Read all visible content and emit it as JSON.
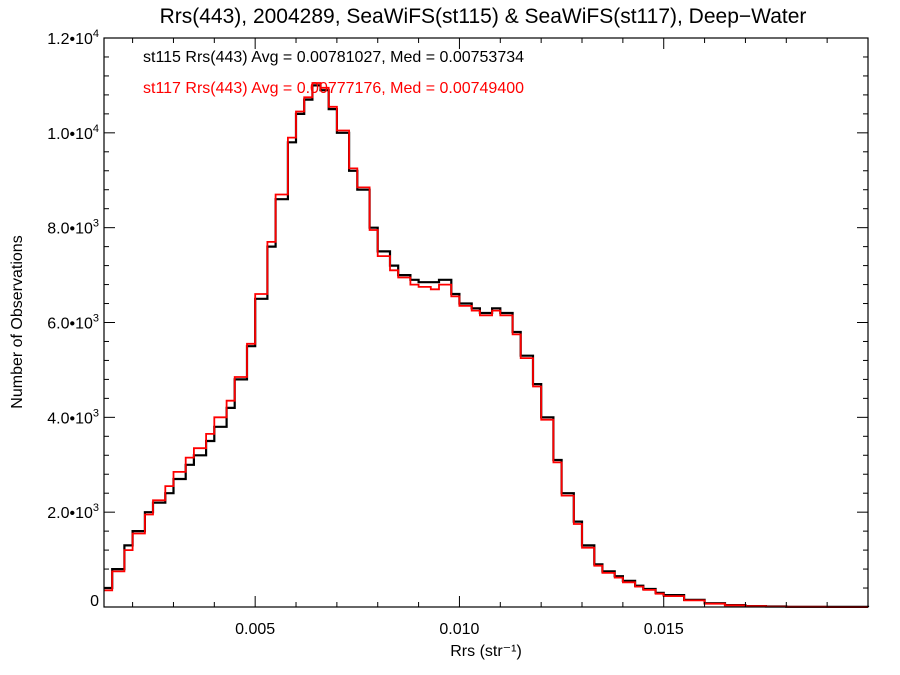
{
  "chart_data": {
    "type": "line",
    "title": "Rrs(443), 2004289, SeaWiFS(st115) & SeaWiFS(st117), Deep−Water",
    "xlabel": "Rrs (str⁻¹)",
    "ylabel": "Number of Observations",
    "xlim": [
      0.0013,
      0.02
    ],
    "ylim": [
      0,
      12000
    ],
    "x_ticks": [
      {
        "value": 0.005,
        "label": "0.005"
      },
      {
        "value": 0.01,
        "label": "0.010"
      },
      {
        "value": 0.015,
        "label": "0.015"
      }
    ],
    "y_ticks": [
      {
        "value": 0,
        "mant": "0",
        "exp": ""
      },
      {
        "value": 2000,
        "mant": "2.0•10",
        "exp": "3"
      },
      {
        "value": 4000,
        "mant": "4.0•10",
        "exp": "3"
      },
      {
        "value": 6000,
        "mant": "6.0•10",
        "exp": "3"
      },
      {
        "value": 8000,
        "mant": "8.0•10",
        "exp": "3"
      },
      {
        "value": 10000,
        "mant": "1.0•10",
        "exp": "4"
      },
      {
        "value": 12000,
        "mant": "1.2•10",
        "exp": "4"
      }
    ],
    "grid": false,
    "legend_position": "top-left",
    "series": [
      {
        "name": "st115",
        "legend_text": "st115 Rrs(443) Avg = 0.00781027, Med = 0.00753734",
        "color": "#000000",
        "x": [
          0.0013,
          0.0015,
          0.0018,
          0.002,
          0.0023,
          0.0025,
          0.0028,
          0.003,
          0.0033,
          0.0035,
          0.0038,
          0.004,
          0.0043,
          0.0045,
          0.0048,
          0.005,
          0.0053,
          0.0055,
          0.0058,
          0.006,
          0.0062,
          0.0064,
          0.0066,
          0.0068,
          0.007,
          0.0073,
          0.0075,
          0.0078,
          0.008,
          0.0083,
          0.0085,
          0.0088,
          0.009,
          0.0093,
          0.0095,
          0.0098,
          0.01,
          0.0103,
          0.0105,
          0.0108,
          0.011,
          0.0113,
          0.0115,
          0.0118,
          0.012,
          0.0123,
          0.0125,
          0.0128,
          0.013,
          0.0133,
          0.0135,
          0.0138,
          0.014,
          0.0143,
          0.0145,
          0.0148,
          0.015,
          0.0155,
          0.016,
          0.0165,
          0.017,
          0.0175,
          0.018,
          0.019,
          0.02
        ],
        "y": [
          400,
          800,
          1300,
          1600,
          2000,
          2200,
          2400,
          2700,
          3000,
          3200,
          3500,
          3800,
          4200,
          4800,
          5500,
          6500,
          7600,
          8600,
          9800,
          10400,
          10700,
          11000,
          10900,
          10500,
          10000,
          9200,
          8800,
          8000,
          7500,
          7200,
          7000,
          6900,
          6850,
          6850,
          6900,
          6600,
          6400,
          6300,
          6200,
          6300,
          6200,
          5800,
          5300,
          4700,
          4000,
          3100,
          2400,
          1800,
          1300,
          900,
          750,
          650,
          550,
          450,
          380,
          300,
          250,
          150,
          80,
          40,
          20,
          10,
          5,
          2,
          0
        ]
      },
      {
        "name": "st117",
        "legend_text": "st117 Rrs(443) Avg = 0.00777176, Med = 0.00749400",
        "color": "#ff0000",
        "x": [
          0.0013,
          0.0015,
          0.0018,
          0.002,
          0.0023,
          0.0025,
          0.0028,
          0.003,
          0.0033,
          0.0035,
          0.0038,
          0.004,
          0.0043,
          0.0045,
          0.0048,
          0.005,
          0.0053,
          0.0055,
          0.0058,
          0.006,
          0.0062,
          0.0064,
          0.0066,
          0.0068,
          0.007,
          0.0073,
          0.0075,
          0.0078,
          0.008,
          0.0083,
          0.0085,
          0.0088,
          0.009,
          0.0093,
          0.0095,
          0.0098,
          0.01,
          0.0103,
          0.0105,
          0.0108,
          0.011,
          0.0113,
          0.0115,
          0.0118,
          0.012,
          0.0123,
          0.0125,
          0.0128,
          0.013,
          0.0133,
          0.0135,
          0.0138,
          0.014,
          0.0143,
          0.0145,
          0.0148,
          0.015,
          0.0155,
          0.016,
          0.0165,
          0.017,
          0.0175,
          0.018,
          0.019,
          0.02
        ],
        "y": [
          350,
          750,
          1200,
          1550,
          1950,
          2250,
          2550,
          2850,
          3150,
          3350,
          3650,
          4000,
          4350,
          4850,
          5550,
          6600,
          7700,
          8700,
          9900,
          10450,
          10750,
          11050,
          10950,
          10550,
          10050,
          9250,
          8850,
          7950,
          7400,
          7100,
          6950,
          6800,
          6750,
          6700,
          6800,
          6550,
          6350,
          6250,
          6150,
          6250,
          6150,
          5750,
          5250,
          4650,
          3950,
          3050,
          2350,
          1750,
          1250,
          870,
          720,
          620,
          520,
          430,
          360,
          280,
          230,
          140,
          70,
          35,
          18,
          8,
          4,
          1,
          0
        ]
      }
    ]
  }
}
